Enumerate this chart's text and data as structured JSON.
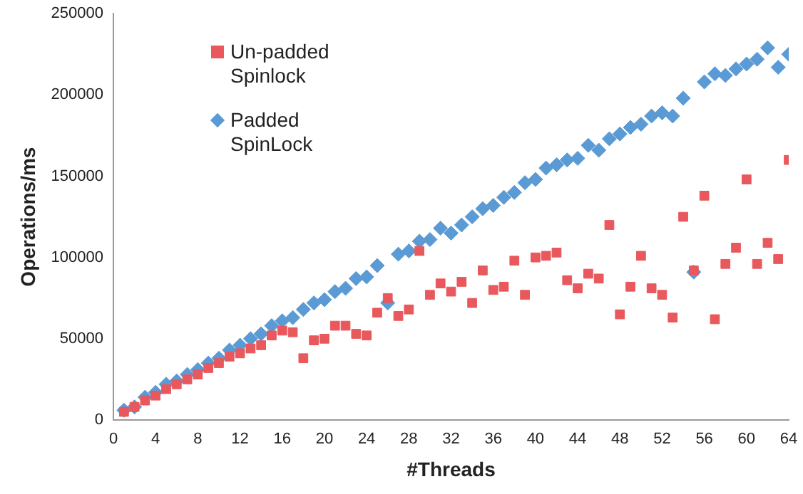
{
  "chart_data": {
    "type": "scatter",
    "xlabel": "#Threads",
    "ylabel": "Operations/ms",
    "x": [
      1,
      2,
      3,
      4,
      5,
      6,
      7,
      8,
      9,
      10,
      11,
      12,
      13,
      14,
      15,
      16,
      17,
      18,
      19,
      20,
      21,
      22,
      23,
      24,
      25,
      26,
      27,
      28,
      29,
      30,
      31,
      32,
      33,
      34,
      35,
      36,
      37,
      38,
      39,
      40,
      41,
      42,
      43,
      44,
      45,
      46,
      47,
      48,
      49,
      50,
      51,
      52,
      53,
      54,
      55,
      56,
      57,
      58,
      59,
      60,
      61,
      62,
      63,
      64
    ],
    "series": [
      {
        "name": "Un-padded Spinlock",
        "color": "#e8585c",
        "marker": "square",
        "values": [
          5000,
          8000,
          12000,
          15000,
          19000,
          22000,
          25000,
          28000,
          32000,
          35000,
          39000,
          41000,
          44000,
          46000,
          52000,
          55000,
          54000,
          38000,
          49000,
          50000,
          58000,
          58000,
          53000,
          52000,
          66000,
          75000,
          64000,
          68000,
          104000,
          77000,
          84000,
          79000,
          85000,
          72000,
          92000,
          80000,
          82000,
          98000,
          77000,
          100000,
          101000,
          103000,
          86000,
          81000,
          90000,
          87000,
          120000,
          65000,
          82000,
          101000,
          81000,
          77000,
          63000,
          125000,
          92000,
          138000,
          62000,
          96000,
          106000,
          148000,
          96000,
          109000,
          99000,
          160000
        ]
      },
      {
        "name": "Padded SpinLock",
        "color": "#5b9bd5",
        "marker": "diamond",
        "values": [
          6000,
          8000,
          14000,
          17000,
          22000,
          24000,
          28000,
          31000,
          35000,
          38000,
          43000,
          46000,
          50000,
          53000,
          58000,
          61000,
          63000,
          68000,
          72000,
          74000,
          79000,
          81000,
          87000,
          88000,
          95000,
          72000,
          102000,
          104000,
          110000,
          111000,
          118000,
          115000,
          120000,
          125000,
          130000,
          132000,
          137000,
          140000,
          146000,
          148000,
          155000,
          157000,
          160000,
          161000,
          169000,
          166000,
          173000,
          176000,
          180000,
          182000,
          187000,
          189000,
          187000,
          198000,
          91000,
          208000,
          213000,
          212000,
          216000,
          219000,
          222000,
          229000,
          217000,
          225000
        ]
      }
    ],
    "xlim": [
      0,
      64
    ],
    "xticks": [
      0,
      4,
      8,
      12,
      16,
      20,
      24,
      28,
      32,
      36,
      40,
      44,
      48,
      52,
      56,
      60,
      64
    ],
    "ylim": [
      0,
      250000
    ],
    "yticks": [
      0,
      50000,
      100000,
      150000,
      200000,
      250000
    ],
    "grid": false,
    "legend": "top left"
  }
}
